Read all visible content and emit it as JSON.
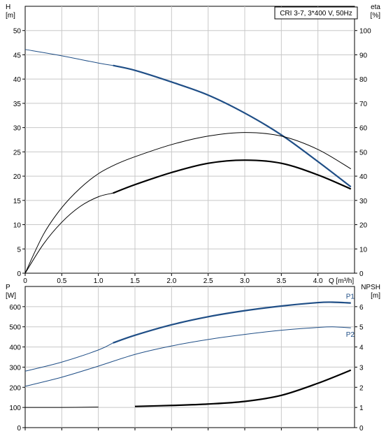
{
  "chart_data": [
    {
      "type": "line",
      "title": "CRI 3-7, 3*400 V, 50Hz",
      "xlabel": "Q [m³/h]",
      "xlim": [
        0,
        4.5
      ],
      "xticks": [
        0,
        0.5,
        1.0,
        1.5,
        2.0,
        2.5,
        3.0,
        3.5,
        4.0
      ],
      "xtick_labels": [
        "0",
        "0.5",
        "1.0",
        "1.5",
        "2.0",
        "2.5",
        "3.0",
        "3.5",
        "4.0"
      ],
      "left_axis": {
        "label": "H",
        "unit": "[m]",
        "ylim": [
          0,
          55
        ],
        "ticks": [
          0,
          5,
          10,
          15,
          20,
          25,
          30,
          35,
          40,
          45,
          50
        ]
      },
      "right_axis": {
        "label": "eta",
        "unit": "[%]",
        "ylim": [
          0,
          110
        ],
        "ticks": [
          0,
          10,
          20,
          30,
          40,
          50,
          60,
          70,
          80,
          90,
          100
        ]
      },
      "grid": true,
      "series": [
        {
          "axis": "left",
          "color": "#1f4e86",
          "x": [
            0,
            0.5,
            1.0,
            1.2,
            1.5,
            2.0,
            2.5,
            3.0,
            3.5,
            4.0,
            4.45
          ],
          "y": [
            46.1,
            44.8,
            43.3,
            42.8,
            41.8,
            39.4,
            36.7,
            33.0,
            28.5,
            23.0,
            17.8
          ],
          "highlight_from": 1.2
        },
        {
          "axis": "right",
          "color": "#000000",
          "x": [
            0,
            0.25,
            0.5,
            0.75,
            1.0,
            1.25,
            1.5,
            2.0,
            2.5,
            3.0,
            3.5,
            4.0,
            4.45
          ],
          "y": [
            0,
            16,
            27,
            35,
            41,
            45,
            48,
            53,
            56.5,
            58,
            56.5,
            51,
            43
          ],
          "style": "thin"
        },
        {
          "axis": "right",
          "color": "#000000",
          "x": [
            0,
            0.25,
            0.5,
            0.75,
            1.0,
            1.2,
            1.5,
            2.0,
            2.5,
            3.0,
            3.5,
            4.0,
            4.45
          ],
          "y": [
            0,
            12,
            21,
            27.5,
            31.5,
            33,
            36.5,
            41.5,
            45.3,
            46.6,
            45.3,
            40.5,
            34.7
          ],
          "highlight_from": 1.2
        }
      ]
    },
    {
      "type": "line",
      "xlim": [
        0,
        4.5
      ],
      "xticks": [
        0,
        0.5,
        1.0,
        1.5,
        2.0,
        2.5,
        3.0,
        3.5,
        4.0
      ],
      "left_axis": {
        "label": "P",
        "unit": "[W]",
        "ylim": [
          0,
          700
        ],
        "ticks": [
          0,
          100,
          200,
          300,
          400,
          500,
          600
        ]
      },
      "right_axis": {
        "label": "NPSH",
        "unit": "[m]",
        "ylim": [
          0,
          7
        ],
        "ticks": [
          0,
          1,
          2,
          3,
          4,
          5,
          6
        ]
      },
      "grid": true,
      "series": [
        {
          "name": "P1",
          "axis": "left",
          "color": "#1f4e86",
          "x": [
            0,
            0.5,
            1.0,
            1.2,
            1.5,
            2.0,
            2.5,
            3.0,
            3.5,
            4.0,
            4.2,
            4.45
          ],
          "y": [
            280,
            325,
            385,
            420,
            458,
            510,
            550,
            580,
            603,
            620,
            622,
            618
          ],
          "highlight_from": 1.2
        },
        {
          "name": "P2",
          "axis": "left",
          "color": "#1f4e86",
          "x": [
            0,
            0.5,
            1.0,
            1.5,
            2.0,
            2.5,
            3.0,
            3.5,
            4.0,
            4.2,
            4.45
          ],
          "y": [
            205,
            250,
            305,
            363,
            405,
            437,
            462,
            483,
            497,
            500,
            495
          ],
          "style": "thin"
        },
        {
          "name": "NPSH",
          "axis": "right",
          "color": "#000000",
          "x": [
            0,
            0.5,
            1.0,
            1.5,
            2.0,
            2.5,
            3.0,
            3.5,
            4.0,
            4.45
          ],
          "y": [
            1.0,
            1.0,
            1.02,
            1.05,
            1.1,
            1.17,
            1.3,
            1.6,
            2.2,
            2.85
          ],
          "highlight_from": 1.2
        }
      ]
    }
  ]
}
